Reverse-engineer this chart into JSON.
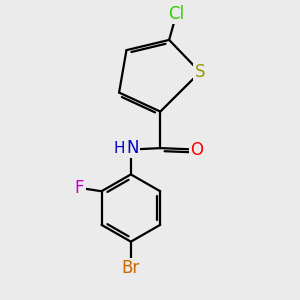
{
  "background_color": "#ebebeb",
  "bond_color": "#000000",
  "lw": 1.6,
  "figsize": [
    3.0,
    3.0
  ],
  "dpi": 100,
  "atoms": {
    "Cl": {
      "color": "#33cc00"
    },
    "S": {
      "color": "#999900"
    },
    "O": {
      "color": "#ff0000"
    },
    "N": {
      "color": "#0000cc"
    },
    "H": {
      "color": "#0000cc"
    },
    "F": {
      "color": "#cc00cc"
    },
    "Br": {
      "color": "#cc6600"
    }
  },
  "fontsize": 11
}
